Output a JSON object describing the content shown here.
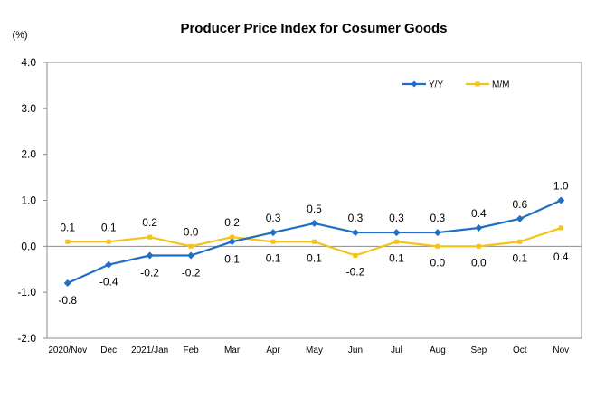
{
  "chart_data": {
    "type": "line",
    "title": "Producer Price Index for Cosumer Goods",
    "unit_label": "(%)",
    "categories": [
      "2020/Nov",
      "Dec",
      "2021/Jan",
      "Feb",
      "Mar",
      "Apr",
      "May",
      "Jun",
      "Jul",
      "Aug",
      "Sep",
      "Oct",
      "Nov"
    ],
    "ylim": [
      -2.0,
      4.0
    ],
    "yticks": [
      "-2.0",
      "-1.0",
      "0.0",
      "1.0",
      "2.0",
      "3.0",
      "4.0"
    ],
    "grid": false,
    "legend_placement": "top-right",
    "series": [
      {
        "name": "Y/Y",
        "color": "#1f6fc5",
        "marker": "diamond",
        "values": [
          -0.8,
          -0.4,
          -0.2,
          -0.2,
          0.1,
          0.3,
          0.5,
          0.3,
          0.3,
          0.3,
          0.4,
          0.6,
          1.0
        ],
        "labels": [
          "-0.8",
          "-0.4",
          "-0.2",
          "-0.2",
          "0.1",
          "0.3",
          "0.5",
          "0.3",
          "0.3",
          "0.3",
          "0.4",
          "0.6",
          "1.0"
        ]
      },
      {
        "name": "M/M",
        "color": "#f5c218",
        "marker": "square",
        "values": [
          0.1,
          0.1,
          0.2,
          0.0,
          0.2,
          0.1,
          0.1,
          -0.2,
          0.1,
          0.0,
          0.0,
          0.1,
          0.4
        ],
        "labels": [
          "0.1",
          "0.1",
          "0.2",
          "0.0",
          "0.2",
          "0.1",
          "0.1",
          "-0.2",
          "0.1",
          "0.0",
          "0.0",
          "0.1",
          "0.4"
        ]
      }
    ]
  }
}
